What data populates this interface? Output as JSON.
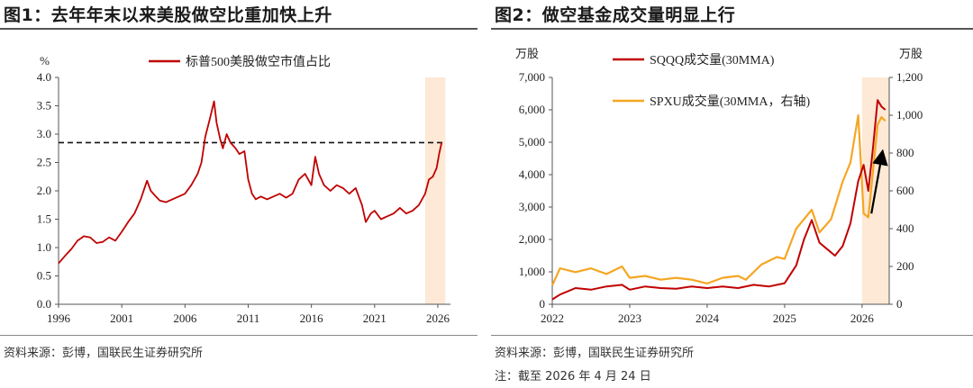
{
  "left": {
    "title": "图1：去年年末以来美股做空比重加快上升",
    "source": "资料来源：彭博，国联民生证券研究所"
  },
  "right": {
    "title": "图2：做空基金成交量明显上行",
    "source": "资料来源：彭博，国联民生证券研究所",
    "note": "注：截至 2026 年 4 月 24 日"
  },
  "chart_data": [
    {
      "type": "line",
      "title": "图1：去年年末以来美股做空比重加快上升",
      "ylabel": "%",
      "ylim": [
        0,
        4
      ],
      "yticks": [
        "0.0",
        "0.5",
        "1.0",
        "1.5",
        "2.0",
        "2.5",
        "3.0",
        "3.5",
        "4.0"
      ],
      "xlim": [
        1996,
        2027
      ],
      "xticks": [
        "1996",
        "2001",
        "2006",
        "2011",
        "2016",
        "2021",
        "2026"
      ],
      "highlight_x": [
        2025,
        2026.6
      ],
      "highlight_color": "#fde9d6",
      "reference_line": {
        "y": 2.85,
        "x": [
          1996,
          2026.6
        ],
        "style": "dashed"
      },
      "series": [
        {
          "name": "标普500美股做空市值占比",
          "color": "#c00000",
          "x": [
            1996,
            1996.5,
            1997,
            1997.5,
            1998,
            1998.5,
            1999,
            1999.5,
            2000,
            2000.5,
            2001,
            2001.5,
            2002,
            2002.5,
            2003,
            2003.3,
            2003.7,
            2004,
            2004.5,
            2005,
            2005.5,
            2006,
            2006.5,
            2007,
            2007.3,
            2007.6,
            2008,
            2008.3,
            2008.5,
            2008.8,
            2009,
            2009.3,
            2009.6,
            2010,
            2010.3,
            2010.7,
            2011,
            2011.3,
            2011.6,
            2012,
            2012.5,
            2013,
            2013.5,
            2014,
            2014.5,
            2015,
            2015.5,
            2016,
            2016.3,
            2016.6,
            2017,
            2017.5,
            2018,
            2018.5,
            2019,
            2019.5,
            2020,
            2020.3,
            2020.7,
            2021,
            2021.5,
            2022,
            2022.5,
            2023,
            2023.5,
            2024,
            2024.5,
            2025,
            2025.3,
            2025.6,
            2025.9,
            2026.1,
            2026.3
          ],
          "values": [
            0.72,
            0.85,
            0.97,
            1.12,
            1.2,
            1.18,
            1.08,
            1.1,
            1.18,
            1.12,
            1.28,
            1.45,
            1.6,
            1.85,
            2.18,
            2.0,
            1.9,
            1.83,
            1.8,
            1.85,
            1.9,
            1.95,
            2.1,
            2.3,
            2.5,
            2.95,
            3.3,
            3.58,
            3.2,
            2.9,
            2.75,
            3.0,
            2.85,
            2.75,
            2.65,
            2.7,
            2.2,
            1.95,
            1.85,
            1.9,
            1.85,
            1.9,
            1.95,
            1.88,
            1.95,
            2.2,
            2.3,
            2.1,
            2.6,
            2.3,
            2.1,
            2.0,
            2.1,
            2.05,
            1.95,
            2.05,
            1.75,
            1.45,
            1.6,
            1.65,
            1.5,
            1.55,
            1.6,
            1.7,
            1.6,
            1.65,
            1.75,
            1.95,
            2.2,
            2.25,
            2.4,
            2.65,
            2.85
          ]
        }
      ]
    },
    {
      "type": "line",
      "title": "图2：做空基金成交量明显上行",
      "ylabel": "万股",
      "ylabel_right": "万股",
      "ylim": [
        0,
        7000
      ],
      "ylim_right": [
        0,
        1200
      ],
      "yticks": [
        "0",
        "1,000",
        "2,000",
        "3,000",
        "4,000",
        "5,000",
        "6,000",
        "7,000"
      ],
      "yticks_right": [
        "0",
        "200",
        "400",
        "600",
        "800",
        "1,000",
        "1,200"
      ],
      "xlim": [
        2022,
        2026.35
      ],
      "xticks": [
        "2022",
        "2023",
        "2024",
        "2025",
        "2026"
      ],
      "highlight_x": [
        2026,
        2026.35
      ],
      "highlight_color": "#fde9d6",
      "arrow": {
        "from": [
          2026.12,
          480
        ],
        "to": [
          2026.26,
          800
        ],
        "axis": "right"
      },
      "series": [
        {
          "name": "SQQQ成交量(30MMA)",
          "axis": "left",
          "color": "#c00000",
          "x": [
            2022,
            2022.1,
            2022.3,
            2022.5,
            2022.7,
            2022.9,
            2023,
            2023.2,
            2023.4,
            2023.6,
            2023.8,
            2024,
            2024.2,
            2024.4,
            2024.6,
            2024.8,
            2025,
            2025.15,
            2025.25,
            2025.35,
            2025.45,
            2025.55,
            2025.65,
            2025.75,
            2025.85,
            2025.95,
            2026.02,
            2026.08,
            2026.14,
            2026.2,
            2026.25,
            2026.3
          ],
          "values": [
            150,
            300,
            500,
            450,
            550,
            600,
            450,
            550,
            500,
            480,
            550,
            500,
            550,
            500,
            600,
            550,
            650,
            1200,
            2000,
            2600,
            1900,
            1700,
            1500,
            1800,
            2500,
            3800,
            4300,
            3500,
            4800,
            6300,
            6100,
            6000
          ]
        },
        {
          "name": "SPXU成交量(30MMA，右轴)",
          "axis": "right",
          "color": "#f5a623",
          "x": [
            2022,
            2022.1,
            2022.3,
            2022.5,
            2022.7,
            2022.9,
            2023,
            2023.2,
            2023.4,
            2023.6,
            2023.8,
            2024,
            2024.2,
            2024.4,
            2024.5,
            2024.7,
            2024.9,
            2025,
            2025.15,
            2025.25,
            2025.35,
            2025.45,
            2025.6,
            2025.75,
            2025.85,
            2025.95,
            2026.02,
            2026.08,
            2026.14,
            2026.2,
            2026.25,
            2026.3
          ],
          "values": [
            100,
            190,
            170,
            190,
            160,
            200,
            140,
            150,
            130,
            140,
            130,
            110,
            140,
            150,
            130,
            210,
            250,
            240,
            400,
            450,
            500,
            380,
            450,
            650,
            750,
            1000,
            480,
            460,
            700,
            950,
            990,
            970
          ]
        }
      ]
    }
  ]
}
